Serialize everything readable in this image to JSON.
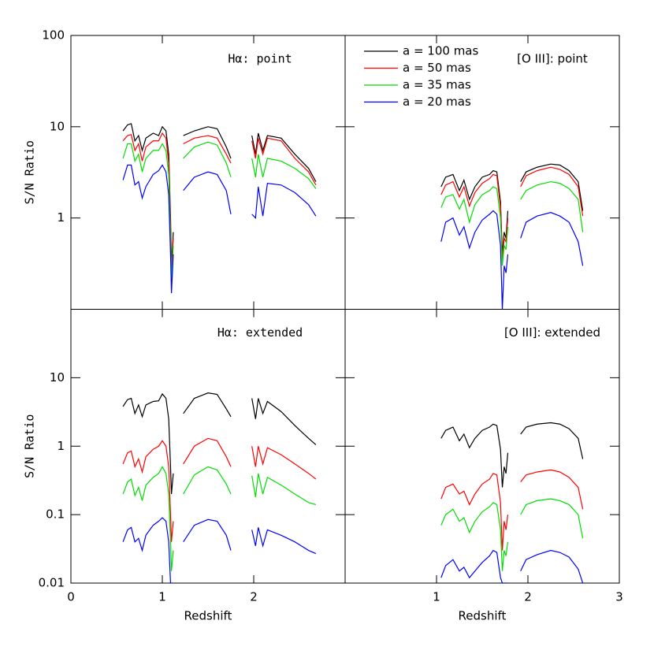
{
  "chart_data": [
    {
      "type": "line",
      "annotation": "Hα: point",
      "ylabel": "S/N Ratio",
      "log_y": true,
      "xlim": [
        0,
        3
      ],
      "ylim": [
        0.1,
        100
      ],
      "xticks": [
        0,
        1,
        2
      ],
      "yticks": [
        1,
        10,
        100
      ],
      "show_xtick_labels": false,
      "show_ytick_labels": true,
      "x": [
        0.57,
        0.62,
        0.66,
        0.7,
        0.74,
        0.78,
        0.82,
        0.9,
        0.96,
        1.0,
        1.04,
        1.07,
        1.09,
        1.1,
        1.12,
        1.19,
        1.23,
        1.35,
        1.5,
        1.6,
        1.7,
        1.75,
        1.86,
        1.98,
        2.02,
        2.05,
        2.1,
        2.15,
        2.3,
        2.45,
        2.6,
        2.68
      ],
      "series": [
        {
          "color": "#000000",
          "values": [
            9,
            10.5,
            10.8,
            7,
            8,
            5.5,
            7.5,
            8.5,
            8,
            10,
            9,
            5,
            1,
            0.3,
            0.7,
            null,
            8,
            9,
            10,
            9.5,
            6,
            4.5,
            null,
            8,
            5,
            8.5,
            5.5,
            8,
            7.5,
            5,
            3.5,
            2.5
          ]
        },
        {
          "color": "#ff0000",
          "values": [
            7,
            8,
            8.2,
            5.5,
            6.5,
            4.2,
            6,
            7,
            7,
            8.5,
            7.5,
            4,
            0.8,
            0.25,
            0.6,
            null,
            6.5,
            7.5,
            8,
            7.5,
            5,
            4,
            null,
            7,
            4.5,
            7.5,
            5,
            7.5,
            7,
            4.5,
            3.2,
            2.3
          ]
        },
        {
          "color": "#00dd00",
          "values": [
            4.5,
            6.5,
            6.5,
            4.2,
            5,
            3.2,
            4.5,
            5.5,
            5.5,
            6.5,
            5.5,
            3,
            0.6,
            0.2,
            0.5,
            null,
            4.5,
            6,
            6.8,
            6.3,
            4,
            2.8,
            null,
            4.5,
            2.8,
            5,
            2.8,
            4.5,
            4.2,
            3.5,
            2.7,
            2.1
          ]
        },
        {
          "color": "#0000ff",
          "values": [
            2.6,
            3.8,
            3.8,
            2.3,
            2.5,
            1.65,
            2.2,
            3.0,
            3.3,
            3.8,
            3.2,
            1.8,
            0.4,
            0.15,
            0.4,
            null,
            2.0,
            2.8,
            3.2,
            3.0,
            2.0,
            1.1,
            null,
            1.1,
            1.0,
            2.2,
            1.05,
            2.4,
            2.3,
            1.9,
            1.4,
            1.05
          ]
        }
      ]
    },
    {
      "type": "line",
      "annotation": "[O III]: point",
      "legend": "upper left",
      "log_y": true,
      "xlim": [
        0,
        3
      ],
      "ylim": [
        0.1,
        100
      ],
      "xticks": [
        1,
        2,
        3
      ],
      "yticks": [
        1,
        10,
        100
      ],
      "show_xtick_labels": false,
      "show_ytick_labels": false,
      "x": [
        1.05,
        1.1,
        1.18,
        1.25,
        1.3,
        1.36,
        1.42,
        1.5,
        1.58,
        1.62,
        1.66,
        1.7,
        1.72,
        1.74,
        1.76,
        1.78,
        1.85,
        1.92,
        1.98,
        2.1,
        2.25,
        2.35,
        2.45,
        2.55,
        2.6
      ],
      "series": [
        {
          "name": "a = 100 mas",
          "color": "#000000",
          "values": [
            2.2,
            2.8,
            3.0,
            2.0,
            2.6,
            1.6,
            2.2,
            2.8,
            3.0,
            3.3,
            3.2,
            1.5,
            0.4,
            0.7,
            0.6,
            1.2,
            null,
            2.5,
            3.2,
            3.6,
            3.9,
            3.8,
            3.3,
            2.5,
            1.2
          ]
        },
        {
          "name": "a = 50 mas",
          "color": "#ff0000",
          "values": [
            1.8,
            2.3,
            2.5,
            1.7,
            2.2,
            1.35,
            1.9,
            2.4,
            2.7,
            3.0,
            2.9,
            1.3,
            0.35,
            0.6,
            0.55,
            1.0,
            null,
            2.2,
            2.9,
            3.3,
            3.6,
            3.4,
            3.0,
            2.2,
            1.05
          ]
        },
        {
          "name": "a = 35 mas",
          "color": "#00dd00",
          "values": [
            1.3,
            1.7,
            1.8,
            1.25,
            1.6,
            0.9,
            1.4,
            1.8,
            2.0,
            2.2,
            2.1,
            1.0,
            0.3,
            0.5,
            0.45,
            0.8,
            null,
            1.6,
            2.0,
            2.3,
            2.5,
            2.4,
            2.1,
            1.6,
            0.7
          ]
        },
        {
          "name": "a = 20 mas",
          "color": "#0000ff",
          "values": [
            0.55,
            0.9,
            1.0,
            0.65,
            0.8,
            0.47,
            0.7,
            0.95,
            1.1,
            1.2,
            1.1,
            0.5,
            0.1,
            0.3,
            0.25,
            0.4,
            null,
            0.6,
            0.9,
            1.05,
            1.15,
            1.05,
            0.9,
            0.55,
            0.3
          ]
        }
      ]
    },
    {
      "type": "line",
      "annotation": "Hα: extended",
      "ylabel": "S/N Ratio",
      "xlabel": "Redshift",
      "log_y": true,
      "xlim": [
        0,
        3
      ],
      "ylim": [
        0.01,
        100
      ],
      "xticks": [
        0,
        1,
        2
      ],
      "yticks": [
        0.01,
        0.1,
        1,
        10
      ],
      "show_xtick_labels": true,
      "show_ytick_labels": true,
      "x": [
        0.57,
        0.62,
        0.66,
        0.7,
        0.74,
        0.78,
        0.82,
        0.9,
        0.96,
        1.0,
        1.04,
        1.07,
        1.09,
        1.1,
        1.12,
        1.19,
        1.23,
        1.35,
        1.5,
        1.6,
        1.7,
        1.75,
        1.86,
        1.98,
        2.02,
        2.05,
        2.1,
        2.15,
        2.3,
        2.45,
        2.6,
        2.68
      ],
      "series": [
        {
          "color": "#000000",
          "values": [
            3.8,
            4.8,
            5,
            3,
            4,
            2.7,
            4,
            4.5,
            4.6,
            5.8,
            5,
            2.5,
            0.5,
            0.2,
            0.4,
            null,
            3,
            5,
            6,
            5.7,
            3.5,
            2.7,
            null,
            5,
            2.5,
            5,
            3,
            4.5,
            3.2,
            2,
            1.3,
            1.05
          ]
        },
        {
          "color": "#ff0000",
          "values": [
            0.55,
            0.8,
            0.85,
            0.5,
            0.65,
            0.42,
            0.7,
            0.9,
            1.0,
            1.2,
            1.0,
            0.5,
            0.1,
            0.04,
            0.08,
            null,
            0.55,
            1.0,
            1.3,
            1.2,
            0.7,
            0.5,
            null,
            1.0,
            0.5,
            1.0,
            0.55,
            0.95,
            0.75,
            0.55,
            0.4,
            0.33
          ]
        },
        {
          "color": "#00dd00",
          "values": [
            0.2,
            0.3,
            0.33,
            0.19,
            0.25,
            0.16,
            0.27,
            0.35,
            0.4,
            0.5,
            0.4,
            0.2,
            0.04,
            0.015,
            0.03,
            null,
            0.2,
            0.38,
            0.5,
            0.45,
            0.28,
            0.2,
            null,
            0.37,
            0.18,
            0.4,
            0.2,
            0.35,
            0.27,
            0.2,
            0.15,
            0.14
          ]
        },
        {
          "color": "#0000ff",
          "values": [
            0.04,
            0.06,
            0.065,
            0.04,
            0.045,
            0.03,
            0.05,
            0.07,
            0.08,
            0.09,
            0.08,
            0.04,
            0.01,
            0.01,
            0.01,
            null,
            0.04,
            0.07,
            0.085,
            0.08,
            0.05,
            0.03,
            null,
            0.06,
            0.035,
            0.065,
            0.035,
            0.06,
            0.05,
            0.04,
            0.03,
            0.027
          ]
        }
      ]
    },
    {
      "type": "line",
      "annotation": "[O III]: extended",
      "xlabel": "Redshift",
      "log_y": true,
      "xlim": [
        0,
        3
      ],
      "ylim": [
        0.01,
        100
      ],
      "xticks": [
        1,
        2,
        3
      ],
      "yticks": [
        0.01,
        0.1,
        1,
        10
      ],
      "show_xtick_labels": true,
      "show_ytick_labels": false,
      "x": [
        1.05,
        1.1,
        1.18,
        1.25,
        1.3,
        1.36,
        1.42,
        1.5,
        1.58,
        1.62,
        1.66,
        1.7,
        1.72,
        1.74,
        1.76,
        1.78,
        1.85,
        1.92,
        1.98,
        2.1,
        2.25,
        2.35,
        2.45,
        2.55,
        2.6
      ],
      "series": [
        {
          "color": "#000000",
          "values": [
            1.3,
            1.7,
            1.9,
            1.2,
            1.5,
            0.95,
            1.3,
            1.7,
            1.9,
            2.1,
            2.0,
            0.9,
            0.25,
            0.5,
            0.4,
            0.8,
            null,
            1.5,
            1.9,
            2.1,
            2.2,
            2.1,
            1.8,
            1.3,
            0.65
          ]
        },
        {
          "color": "#ff0000",
          "values": [
            0.17,
            0.25,
            0.28,
            0.2,
            0.22,
            0.14,
            0.2,
            0.28,
            0.33,
            0.4,
            0.38,
            0.15,
            0.03,
            0.08,
            0.06,
            0.1,
            null,
            0.3,
            0.38,
            0.42,
            0.45,
            0.42,
            0.35,
            0.25,
            0.12
          ]
        },
        {
          "color": "#00dd00",
          "values": [
            0.07,
            0.1,
            0.12,
            0.08,
            0.09,
            0.055,
            0.08,
            0.11,
            0.13,
            0.15,
            0.14,
            0.06,
            0.015,
            0.03,
            0.025,
            0.04,
            null,
            0.1,
            0.14,
            0.16,
            0.17,
            0.16,
            0.14,
            0.1,
            0.045
          ]
        },
        {
          "color": "#0000ff",
          "values": [
            0.012,
            0.018,
            0.022,
            0.015,
            0.017,
            0.012,
            0.015,
            0.02,
            0.025,
            0.03,
            0.028,
            0.012,
            0.01,
            0.01,
            0.01,
            0.01,
            null,
            0.015,
            0.022,
            0.026,
            0.03,
            0.028,
            0.024,
            0.016,
            0.01
          ]
        }
      ]
    }
  ]
}
